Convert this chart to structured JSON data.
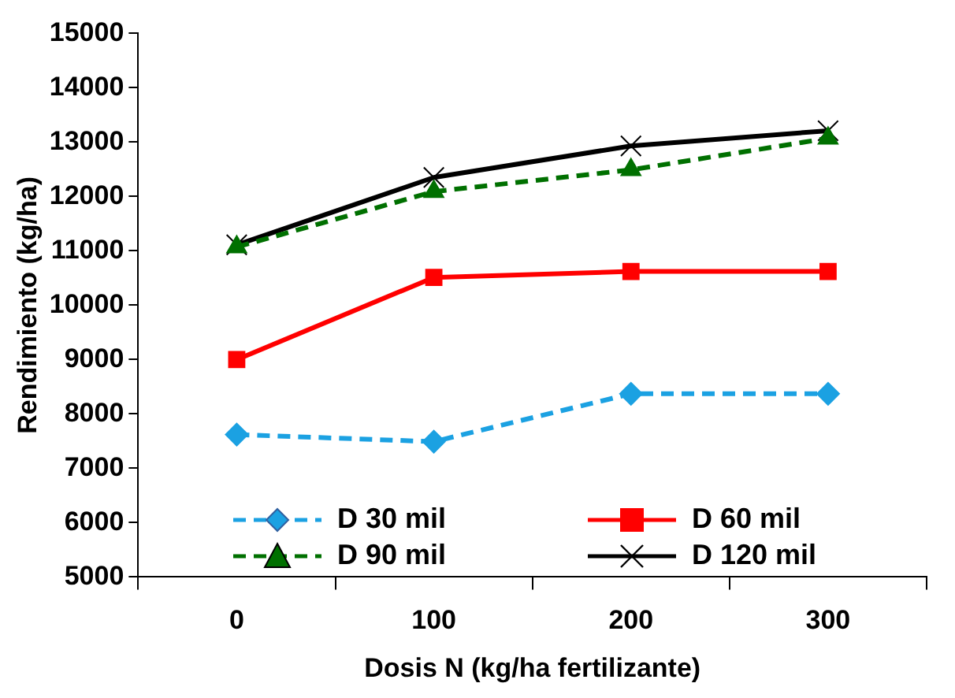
{
  "chart_data": {
    "type": "line",
    "xlabel": "Dosis N (kg/ha fertilizante)",
    "ylabel": "Rendimiento (kg/ha)",
    "categories": [
      "0",
      "100",
      "200",
      "300"
    ],
    "ylim": [
      5000,
      15000
    ],
    "yticks": [
      5000,
      6000,
      7000,
      8000,
      9000,
      10000,
      11000,
      12000,
      13000,
      14000,
      15000
    ],
    "grid": false,
    "legend": "bottom",
    "series": [
      {
        "name": "D 30 mil",
        "color": "#1ba1e2",
        "marker": "diamond",
        "line_style": "dashed",
        "values": [
          7620,
          7490,
          8370,
          8370
        ]
      },
      {
        "name": "D 60 mil",
        "color": "#ff0000",
        "marker": "square",
        "line_style": "solid",
        "values": [
          9000,
          10510,
          10620,
          10620
        ]
      },
      {
        "name": "D 90 mil",
        "color": "#007000",
        "marker": "triangle",
        "line_style": "dashed",
        "values": [
          11070,
          12090,
          12490,
          13070
        ]
      },
      {
        "name": "D 120 mil",
        "color": "#000000",
        "marker": "cross",
        "line_style": "solid",
        "values": [
          11110,
          12350,
          12930,
          13210
        ]
      }
    ]
  }
}
